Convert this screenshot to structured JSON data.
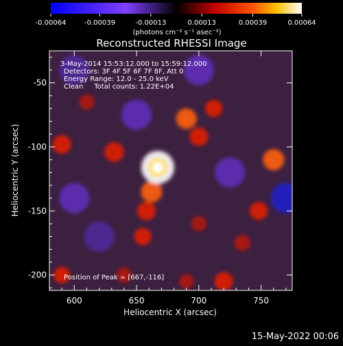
{
  "colorbar": {
    "ticks": [
      "-0.00064",
      "-0.00039",
      "-0.00013",
      "0.00013",
      "0.00039",
      "0.00064"
    ],
    "tick_values": [
      -0.00064,
      -0.00039,
      -0.00013,
      0.00013,
      0.00039,
      0.00064
    ],
    "unit_label": "(photons cm⁻² s⁻¹ asec⁻²)",
    "range": [
      -0.00064,
      0.00064
    ]
  },
  "chart_data": {
    "type": "heatmap",
    "title": "Reconstructed RHESSI Image",
    "xlabel": "Heliocentric X (arcsec)",
    "ylabel": "Heliocentric Y (arcsec)",
    "xlim": [
      580,
      775
    ],
    "ylim": [
      -212,
      -25
    ],
    "x_ticks": [
      600,
      650,
      700,
      750
    ],
    "y_ticks": [
      -50,
      -100,
      -150,
      -200
    ],
    "peak": {
      "x": 667,
      "y": -116
    },
    "annotations": {
      "time": "3-May-2014 15:53:12.000 to 15:59:12.000",
      "detectors": "Detectors: 3F 4F 5F 6F 7F 8F, Att 0",
      "energy": "Energy Range: 12.0 - 25.0 keV",
      "clean": "Clean     Total counts: 1.22E+04",
      "peak_label": "Position of Peak = [667,-116]"
    },
    "sources": [
      {
        "x": 667,
        "y": -116,
        "value": 0.00064
      },
      {
        "x": 662,
        "y": -135,
        "value": 0.0003
      },
      {
        "x": 658,
        "y": -150,
        "value": 0.00022
      },
      {
        "x": 655,
        "y": -170,
        "value": 0.00018
      },
      {
        "x": 690,
        "y": -78,
        "value": 0.00028
      },
      {
        "x": 700,
        "y": -92,
        "value": 0.00022
      },
      {
        "x": 712,
        "y": -70,
        "value": 0.00018
      },
      {
        "x": 632,
        "y": -104,
        "value": 0.00025
      },
      {
        "x": 590,
        "y": -98,
        "value": 0.00022
      },
      {
        "x": 760,
        "y": -110,
        "value": 0.0003
      },
      {
        "x": 748,
        "y": -150,
        "value": 0.0002
      },
      {
        "x": 735,
        "y": -175,
        "value": 0.00015
      },
      {
        "x": 720,
        "y": -205,
        "value": 0.00022
      },
      {
        "x": 610,
        "y": -65,
        "value": 0.00012
      },
      {
        "x": 590,
        "y": -200,
        "value": 0.00016
      },
      {
        "x": 700,
        "y": -160,
        "value": 0.00012
      },
      {
        "x": 690,
        "y": -205,
        "value": 0.0001
      },
      {
        "x": 640,
        "y": -200,
        "value": 0.00012
      }
    ],
    "negative_regions": [
      {
        "x": 770,
        "y": -140,
        "value": -0.00028
      },
      {
        "x": 650,
        "y": -75,
        "value": -0.00015
      },
      {
        "x": 600,
        "y": -140,
        "value": -0.00018
      },
      {
        "x": 725,
        "y": -120,
        "value": -0.00015
      },
      {
        "x": 700,
        "y": -40,
        "value": -0.00015
      },
      {
        "x": 620,
        "y": -170,
        "value": -0.00012
      },
      {
        "x": 600,
        "y": -40,
        "value": -0.00012
      }
    ]
  },
  "timestamp": "15-May-2022 00:06"
}
